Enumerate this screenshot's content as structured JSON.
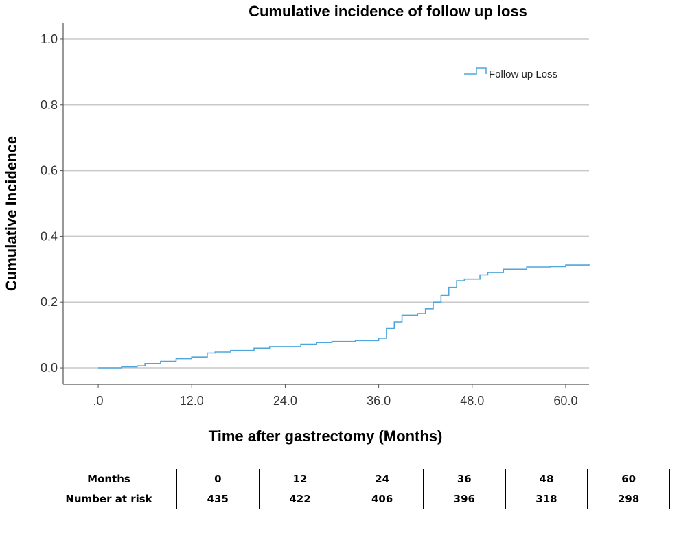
{
  "chart_data": {
    "type": "line",
    "title": "Cumulative incidence of follow up loss",
    "xlabel": "Time after gastrectomy (Months)",
    "ylabel": "Cumulative Incidence",
    "xlim": [
      -4.5,
      63
    ],
    "ylim": [
      -0.05,
      1.05
    ],
    "x_ticks": [
      0,
      12,
      24,
      36,
      48,
      60
    ],
    "x_tick_labels": [
      ".0",
      "12.0",
      "24.0",
      "36.0",
      "48.0",
      "60.0"
    ],
    "y_ticks": [
      0,
      0.2,
      0.4,
      0.6,
      0.8,
      1.0
    ],
    "y_tick_labels": [
      "0.0",
      "0.2",
      "0.4",
      "0.6",
      "0.8",
      "1.0"
    ],
    "grid": "horizontal",
    "legend_position": "top-right",
    "step": true,
    "series": [
      {
        "name": "Follow up Loss",
        "color": "#4ea6dc",
        "x": [
          0,
          3,
          5,
          6,
          8,
          10,
          12,
          14,
          15,
          17,
          20,
          22,
          26,
          28,
          30,
          33,
          36,
          37,
          38,
          39,
          41,
          42,
          43,
          44,
          45,
          46,
          47,
          49,
          50,
          52,
          55,
          58,
          60,
          63
        ],
        "y": [
          0,
          0.003,
          0.006,
          0.013,
          0.02,
          0.028,
          0.033,
          0.045,
          0.048,
          0.053,
          0.06,
          0.065,
          0.072,
          0.077,
          0.08,
          0.083,
          0.09,
          0.12,
          0.14,
          0.16,
          0.165,
          0.18,
          0.2,
          0.22,
          0.245,
          0.265,
          0.27,
          0.283,
          0.29,
          0.3,
          0.307,
          0.308,
          0.313,
          0.315
        ]
      }
    ]
  },
  "risk_table": {
    "header": "Months",
    "row_label": "Number at risk",
    "months": [
      "0",
      "12",
      "24",
      "36",
      "48",
      "60"
    ],
    "at_risk": [
      "435",
      "422",
      "406",
      "396",
      "318",
      "298"
    ]
  }
}
